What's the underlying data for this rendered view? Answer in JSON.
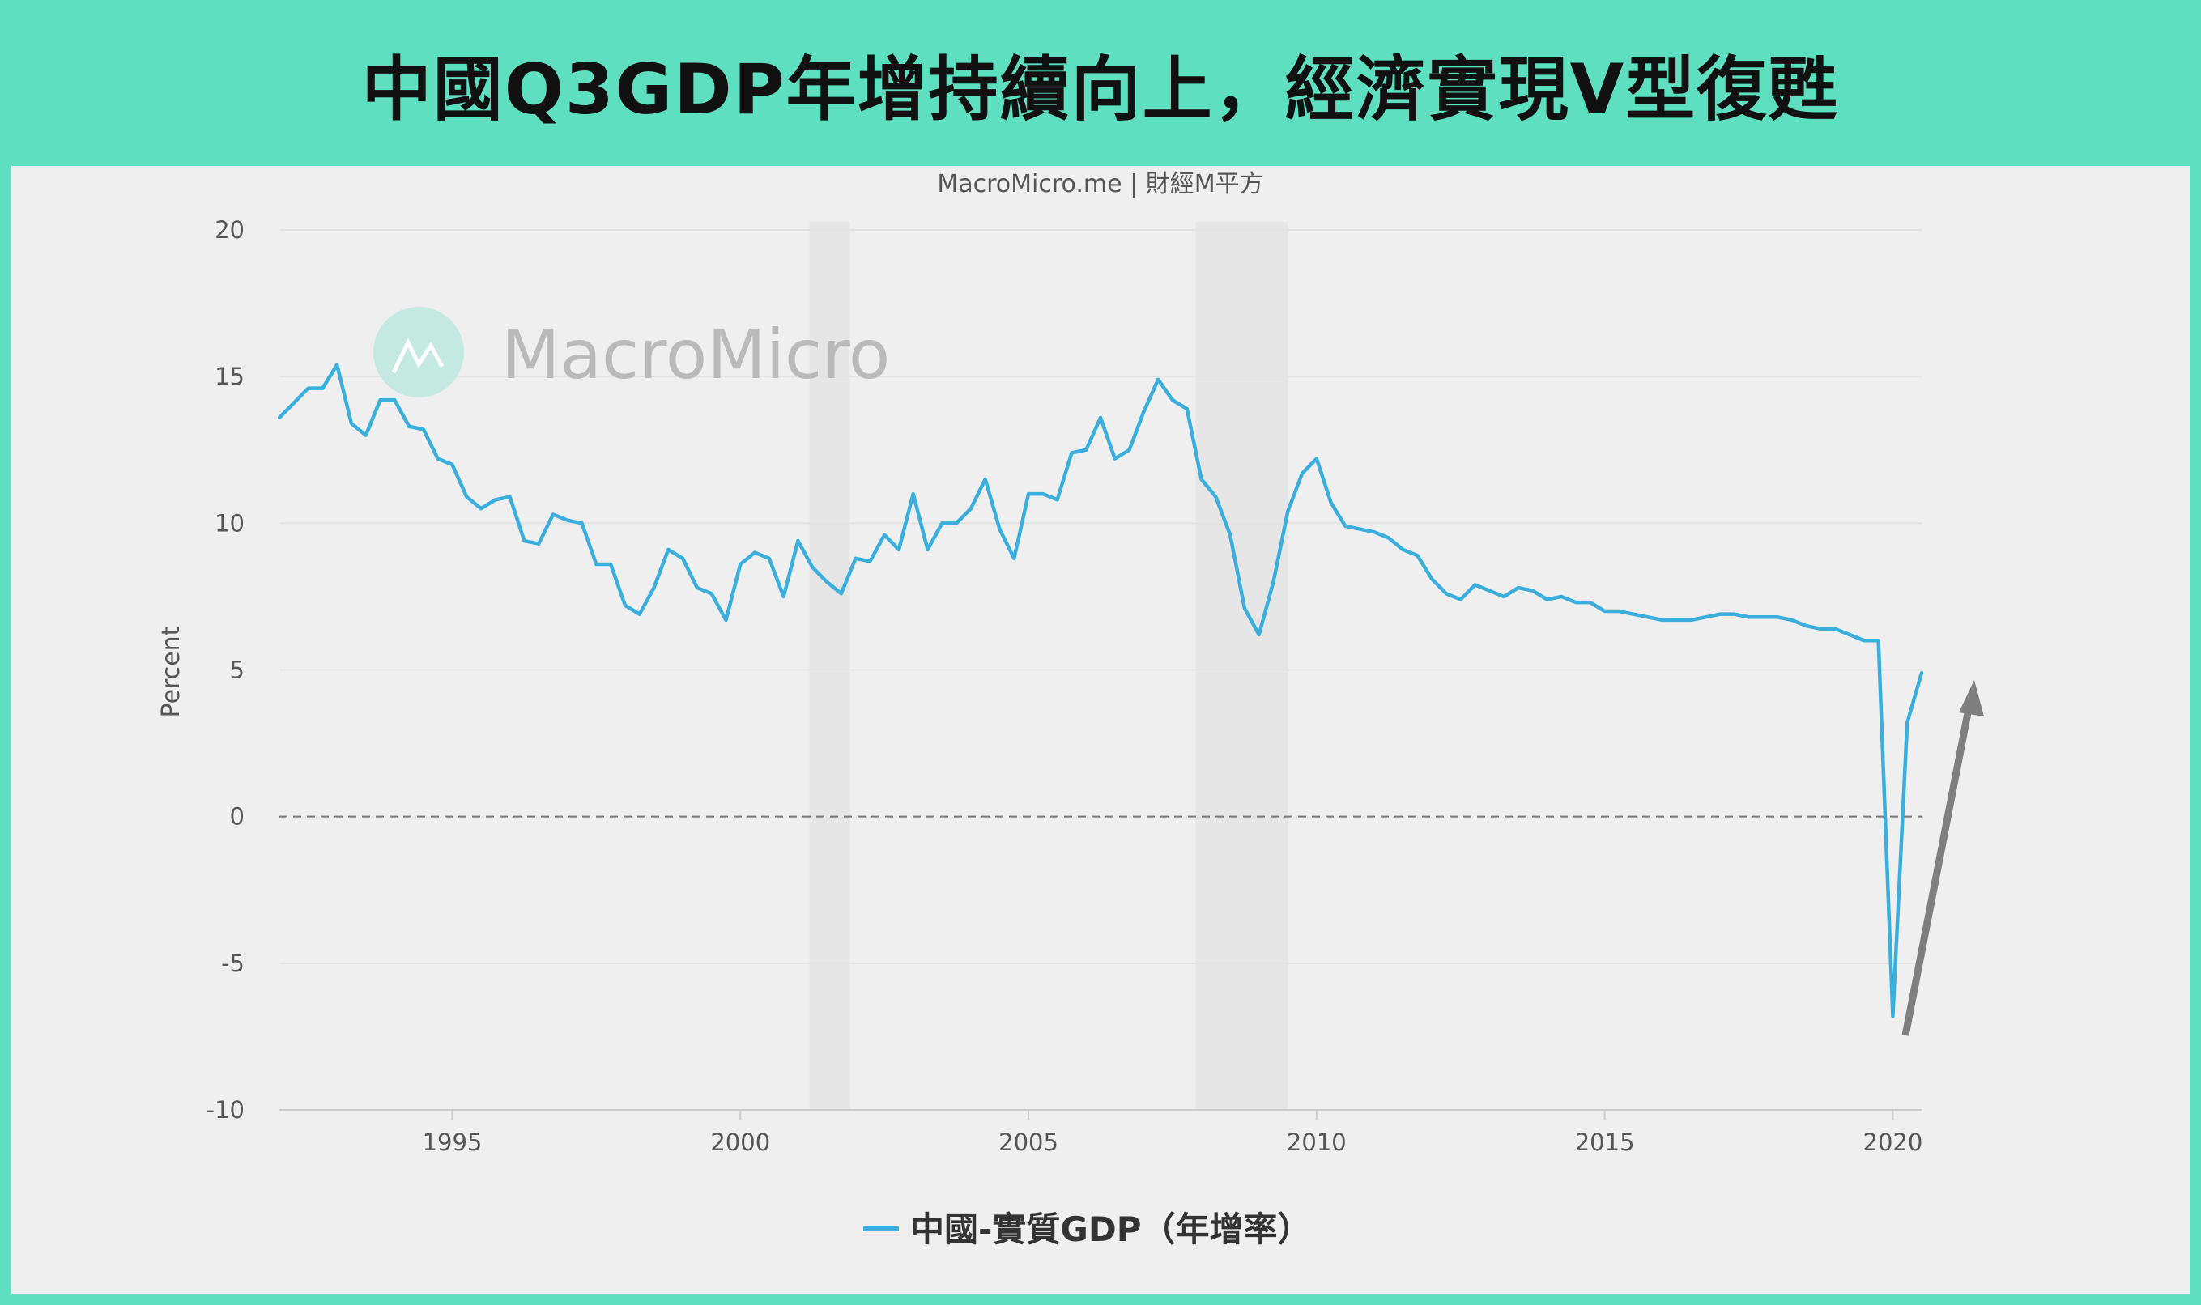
{
  "header": {
    "title": "中國Q3GDP年增持續向上，經濟實現V型復甦"
  },
  "colors": {
    "background": "#5ddfc0",
    "panel": "#efefef",
    "line": "#3aaedc",
    "arrow": "#7f7f7f"
  },
  "watermark": {
    "text": "MacroMicro",
    "icon": "chart-logo-icon"
  },
  "chart_data": {
    "type": "line",
    "source": "MacroMicro.me | 財經M平方",
    "ylabel": "Percent",
    "xlabel": "",
    "ylim": [
      -10,
      20
    ],
    "xlim": [
      1992,
      2020.5
    ],
    "yticks": [
      20,
      15,
      10,
      5,
      0,
      -5,
      -10
    ],
    "xticks": [
      1995,
      2000,
      2005,
      2010,
      2015,
      2020
    ],
    "grid": true,
    "zero_line": "dashed",
    "legend_position": "bottom",
    "shaded_ranges": [
      [
        2001.2,
        2001.9
      ],
      [
        2007.9,
        2009.5
      ]
    ],
    "annotation": "up-arrow",
    "series": [
      {
        "name": "中國-實質GDP（年增率）",
        "start": "1992Q1",
        "frequency": "quarterly",
        "values": [
          13.6,
          14.1,
          14.6,
          14.6,
          15.4,
          13.4,
          13.0,
          14.2,
          14.2,
          13.3,
          13.2,
          12.2,
          12.0,
          10.9,
          10.5,
          10.8,
          10.9,
          9.4,
          9.3,
          10.3,
          10.1,
          10.0,
          8.6,
          8.6,
          7.2,
          6.9,
          7.8,
          9.1,
          8.8,
          7.8,
          7.6,
          6.7,
          8.6,
          9.0,
          8.8,
          7.5,
          9.4,
          8.5,
          8.0,
          7.6,
          8.8,
          8.7,
          9.6,
          9.1,
          11.0,
          9.1,
          10.0,
          10.0,
          10.5,
          11.5,
          9.8,
          8.8,
          11.0,
          11.0,
          10.8,
          12.4,
          12.5,
          13.6,
          12.2,
          12.5,
          13.8,
          14.9,
          14.2,
          13.9,
          11.5,
          10.9,
          9.6,
          7.1,
          6.2,
          8.0,
          10.4,
          11.7,
          12.2,
          10.7,
          9.9,
          9.8,
          9.7,
          9.5,
          9.1,
          8.9,
          8.1,
          7.6,
          7.4,
          7.9,
          7.7,
          7.5,
          7.8,
          7.7,
          7.4,
          7.5,
          7.3,
          7.3,
          7.0,
          7.0,
          6.9,
          6.8,
          6.7,
          6.7,
          6.7,
          6.8,
          6.9,
          6.9,
          6.8,
          6.8,
          6.8,
          6.7,
          6.5,
          6.4,
          6.4,
          6.2,
          6.0,
          6.0,
          -6.8,
          3.2,
          4.9
        ]
      }
    ]
  }
}
